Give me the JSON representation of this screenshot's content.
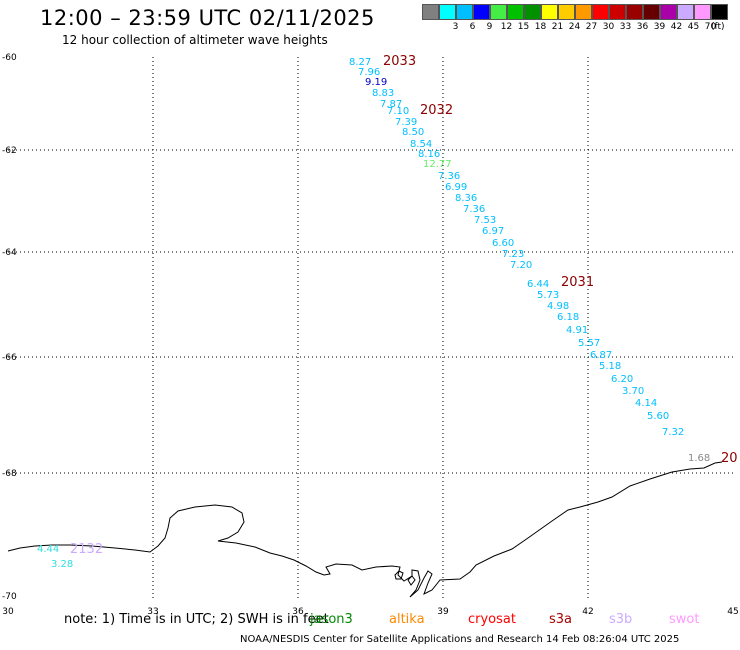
{
  "header": {
    "title": "12:00 – 23:59 UTC 02/11/2025",
    "subtitle": "12 hour collection of altimeter wave heights"
  },
  "legend": {
    "items": [
      {
        "label": "",
        "color": "#808080"
      },
      {
        "label": "3",
        "color": "#00ffff"
      },
      {
        "label": "6",
        "color": "#00bfff"
      },
      {
        "label": "9",
        "color": "#0000ff"
      },
      {
        "label": "12",
        "color": "#44ee44"
      },
      {
        "label": "15",
        "color": "#00c000"
      },
      {
        "label": "18",
        "color": "#009000"
      },
      {
        "label": "21",
        "color": "#ffff00"
      },
      {
        "label": "24",
        "color": "#ffcc00"
      },
      {
        "label": "27",
        "color": "#ff9900"
      },
      {
        "label": "30",
        "color": "#ff0000"
      },
      {
        "label": "33",
        "color": "#cc0000"
      },
      {
        "label": "36",
        "color": "#990000"
      },
      {
        "label": "39",
        "color": "#660000"
      },
      {
        "label": "42",
        "color": "#aa00aa"
      },
      {
        "label": "45",
        "color": "#ccaaff"
      },
      {
        "label": "70",
        "color": "#ff99ff"
      },
      {
        "label": "",
        "color": "#000000"
      }
    ],
    "unit": "(ft)"
  },
  "axes": {
    "y_labels": [
      "-60",
      "-62",
      "-64",
      "-66",
      "-68",
      "-70"
    ],
    "x_labels": [
      "30",
      "33",
      "36",
      "39",
      "42",
      "45"
    ]
  },
  "time_labels": [
    {
      "text": "2033",
      "color": "#8b0000"
    },
    {
      "text": "2032",
      "color": "#8b0000"
    },
    {
      "text": "2031",
      "color": "#8b0000"
    },
    {
      "text": "20",
      "color": "#8b0000"
    },
    {
      "text": "2132",
      "color": "#ccaaff"
    }
  ],
  "wave_heights": [
    {
      "value": "8.27",
      "color": "#00bfff"
    },
    {
      "value": "7.96",
      "color": "#00bfff"
    },
    {
      "value": "9.19",
      "color": "#0000cc"
    },
    {
      "value": "8.83",
      "color": "#00bfff"
    },
    {
      "value": "7.87",
      "color": "#00bfff"
    },
    {
      "value": "7.10",
      "color": "#00bfff"
    },
    {
      "value": "7.39",
      "color": "#00bfff"
    },
    {
      "value": "8.50",
      "color": "#00bfff"
    },
    {
      "value": "8.54",
      "color": "#00bfff"
    },
    {
      "value": "8.16",
      "color": "#00bfff"
    },
    {
      "value": "12.77",
      "color": "#66ee66"
    },
    {
      "value": "7.36",
      "color": "#00bfff"
    },
    {
      "value": "6.99",
      "color": "#00bfff"
    },
    {
      "value": "8.36",
      "color": "#00bfff"
    },
    {
      "value": "7.36",
      "color": "#00bfff"
    },
    {
      "value": "7.53",
      "color": "#00bfff"
    },
    {
      "value": "6.97",
      "color": "#00bfff"
    },
    {
      "value": "6.60",
      "color": "#00bfff"
    },
    {
      "value": "7.23",
      "color": "#00bfff"
    },
    {
      "value": "7.20",
      "color": "#00bfff"
    },
    {
      "value": "6.44",
      "color": "#00bfff"
    },
    {
      "value": "5.73",
      "color": "#00bfff"
    },
    {
      "value": "4.98",
      "color": "#00bfff"
    },
    {
      "value": "6.18",
      "color": "#00bfff"
    },
    {
      "value": "4.91",
      "color": "#00bfff"
    },
    {
      "value": "5.57",
      "color": "#00bfff"
    },
    {
      "value": "6.87",
      "color": "#00bfff"
    },
    {
      "value": "5.18",
      "color": "#00bfff"
    },
    {
      "value": "6.20",
      "color": "#00bfff"
    },
    {
      "value": "3.70",
      "color": "#00bfff"
    },
    {
      "value": "4.14",
      "color": "#00bfff"
    },
    {
      "value": "5.60",
      "color": "#00bfff"
    },
    {
      "value": "7.32",
      "color": "#00bfff"
    },
    {
      "value": "1.68",
      "color": "#888888"
    },
    {
      "value": "4.44",
      "color": "#33dddd"
    },
    {
      "value": "3.28",
      "color": "#33dddd"
    }
  ],
  "footer": {
    "note": "note:  1) Time is in UTC; 2) SWH is in feet",
    "satellites": [
      {
        "name": "jason3",
        "color": "#008800"
      },
      {
        "name": "altika",
        "color": "#ff8800"
      },
      {
        "name": "cryosat",
        "color": "#ff0000"
      },
      {
        "name": "s3a",
        "color": "#aa0000"
      },
      {
        "name": "s3b",
        "color": "#ccaaff"
      },
      {
        "name": "swot",
        "color": "#ff99ff"
      }
    ],
    "credit": "NOAA/NESDIS Center for Satellite Applications and Research     14 Feb 08:26:04 UTC 2025"
  }
}
